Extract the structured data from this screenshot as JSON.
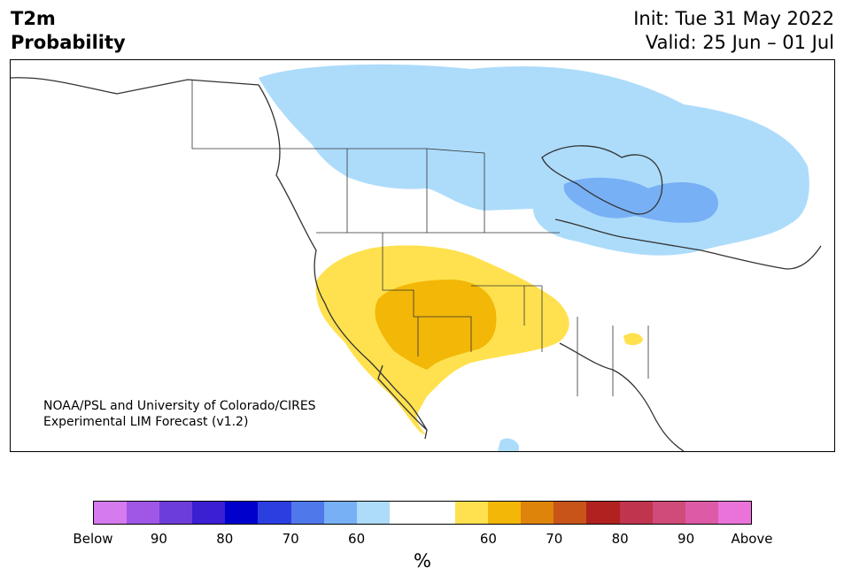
{
  "header": {
    "title_line1": "T2m",
    "title_line2": "Probability",
    "init_text": "Init: Tue 31 May 2022",
    "valid_text": "Valid: 25 Jun – 01 Jul"
  },
  "credit": {
    "line1": "NOAA/PSL and University of Colorado/CIRES",
    "line2": "Experimental LIM Forecast (v1.2)"
  },
  "colorbar": {
    "colors": [
      "#d57aef",
      "#a057e6",
      "#6d3ddb",
      "#3a1fd3",
      "#0000cc",
      "#2b3fe0",
      "#4f78ea",
      "#78b0f5",
      "#addcfb",
      "#ffffff",
      "#ffffff",
      "#ffe14f",
      "#f2b707",
      "#de840b",
      "#c8541a",
      "#b0211f",
      "#c0344e",
      "#d04b79",
      "#dd5aa6",
      "#ea73d9"
    ],
    "tick_labels": [
      "Below",
      "90",
      "80",
      "70",
      "60",
      "60",
      "70",
      "80",
      "90",
      "Above"
    ],
    "unit": "%"
  },
  "map_colors": {
    "below_light": "#addcfb",
    "below_medium": "#78b0f5",
    "above_light": "#ffe14f",
    "above_medium": "#f2b707",
    "outline": "#333333"
  }
}
